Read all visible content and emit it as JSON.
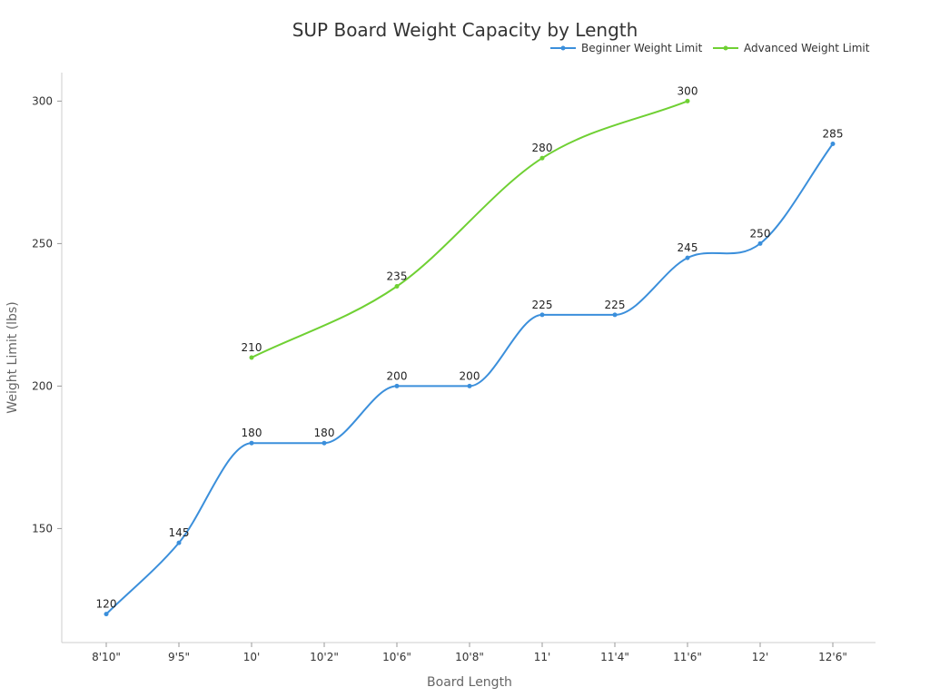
{
  "chart_data": {
    "type": "line",
    "title": "SUP Board Weight Capacity by Length",
    "xlabel": "Board Length",
    "ylabel": "Weight Limit (lbs)",
    "categories": [
      "8'10\"",
      "9'5\"",
      "10'",
      "10'2\"",
      "10'6\"",
      "10'8\"",
      "11'",
      "11'4\"",
      "11'6\"",
      "12'",
      "12'6\""
    ],
    "ylim": [
      110,
      310
    ],
    "yticks": [
      150,
      200,
      250,
      300
    ],
    "grid": false,
    "legend_position": "top-right",
    "series": [
      {
        "name": "Beginner Weight Limit",
        "color": "#3b8fdb",
        "values": [
          120,
          145,
          180,
          180,
          200,
          200,
          225,
          225,
          245,
          250,
          285
        ]
      },
      {
        "name": "Advanced Weight Limit",
        "color": "#6fd033",
        "values": [
          null,
          null,
          210,
          null,
          235,
          null,
          280,
          null,
          300,
          null,
          null
        ]
      }
    ]
  }
}
